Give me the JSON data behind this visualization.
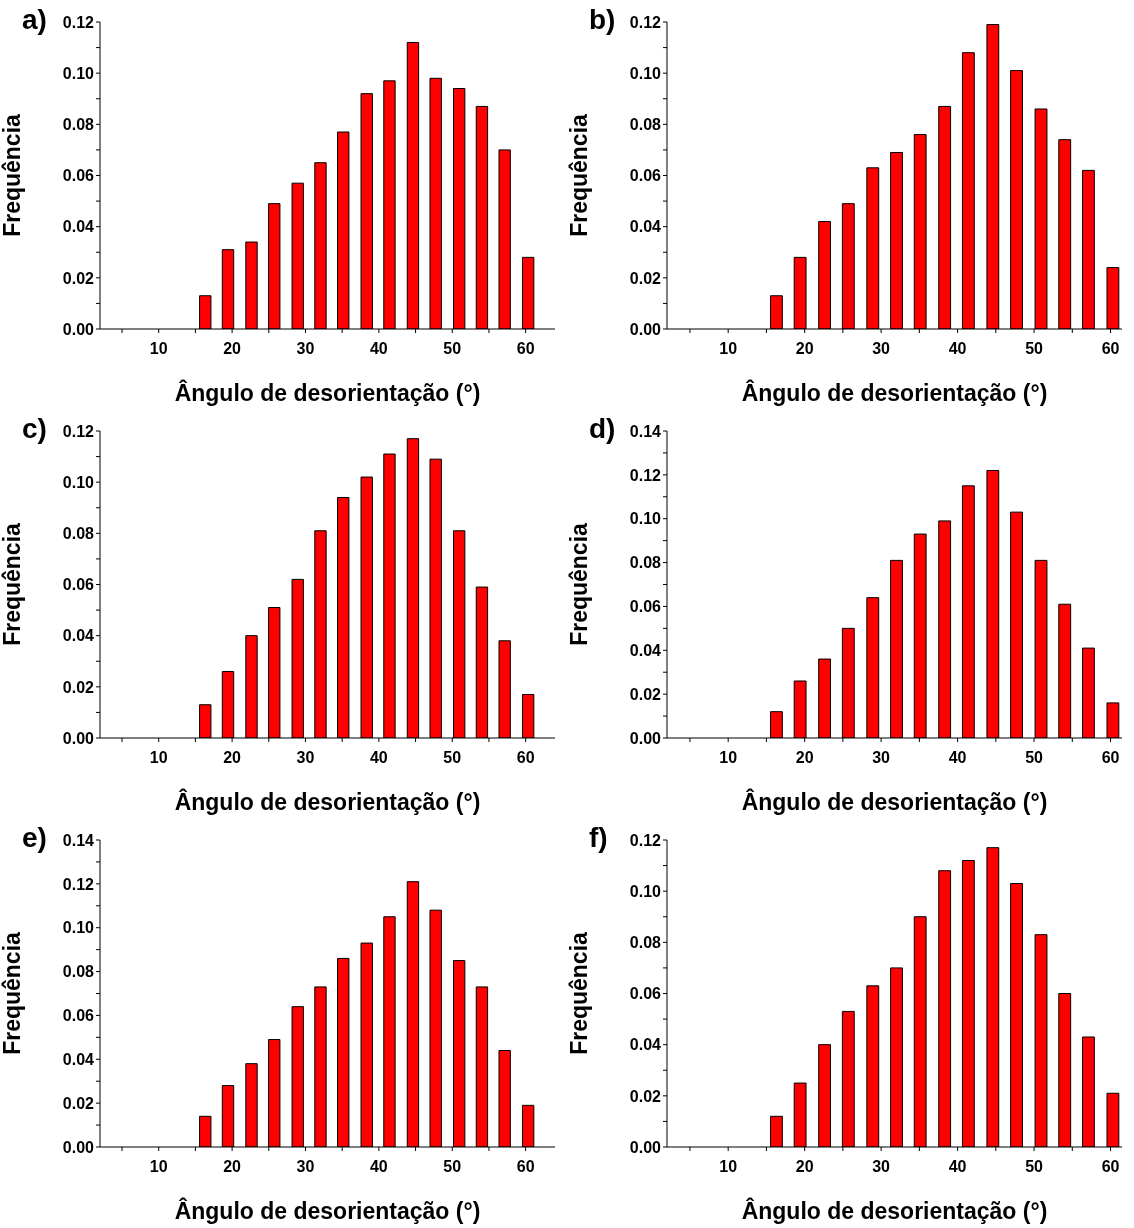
{
  "chart_data": [
    {
      "type": "bar",
      "title": "a)",
      "xlabel": "Ângulo de desorientação (°)",
      "ylabel": "Frequência",
      "x": [
        16.3,
        19.4,
        22.6,
        25.7,
        28.9,
        32.0,
        35.1,
        38.3,
        41.4,
        44.6,
        47.7,
        50.9,
        54.0,
        57.1,
        60.3
      ],
      "values": [
        0.013,
        0.031,
        0.034,
        0.049,
        0.057,
        0.065,
        0.077,
        0.092,
        0.097,
        0.112,
        0.098,
        0.094,
        0.087,
        0.07,
        0.028
      ],
      "color": "#ff0000",
      "xlim": [
        2,
        64
      ],
      "xticks": [
        {
          "value": 5,
          "label": null
        },
        10,
        {
          "value": 15,
          "label": null
        },
        20,
        {
          "value": 25,
          "label": null
        },
        30,
        {
          "value": 35,
          "label": null
        },
        40,
        {
          "value": 45,
          "label": null
        },
        50,
        {
          "value": 55,
          "label": null
        },
        60
      ],
      "ylim": [
        0,
        0.12
      ],
      "yticks": [
        {
          "value": 0,
          "label": "0.00"
        },
        {
          "value": 0.01,
          "label": null
        },
        {
          "value": 0.02,
          "label": "0.02"
        },
        {
          "value": 0.03,
          "label": null
        },
        {
          "value": 0.04,
          "label": "0.04"
        },
        {
          "value": 0.05,
          "label": null
        },
        {
          "value": 0.06,
          "label": "0.06"
        },
        {
          "value": 0.07,
          "label": null
        },
        {
          "value": 0.08,
          "label": "0.08"
        },
        {
          "value": 0.09,
          "label": null
        },
        {
          "value": 0.1,
          "label": "0.10"
        },
        {
          "value": 0.11,
          "label": null
        },
        {
          "value": 0.12,
          "label": "0.12"
        }
      ]
    },
    {
      "type": "bar",
      "title": "b)",
      "xlabel": "Ângulo de desorientação (°)",
      "ylabel": "Frequência",
      "x": [
        16.3,
        19.4,
        22.6,
        25.7,
        28.9,
        32.0,
        35.1,
        38.3,
        41.4,
        44.6,
        47.7,
        50.9,
        54.0,
        57.1,
        60.3
      ],
      "values": [
        0.013,
        0.028,
        0.042,
        0.049,
        0.063,
        0.069,
        0.076,
        0.087,
        0.108,
        0.119,
        0.101,
        0.086,
        0.074,
        0.062,
        0.024
      ],
      "color": "#ff0000",
      "xlim": [
        2,
        61.5
      ],
      "xticks": [
        {
          "value": 5,
          "label": null
        },
        10,
        {
          "value": 15,
          "label": null
        },
        20,
        {
          "value": 25,
          "label": null
        },
        30,
        {
          "value": 35,
          "label": null
        },
        40,
        {
          "value": 45,
          "label": null
        },
        50,
        {
          "value": 55,
          "label": null
        },
        60
      ],
      "ylim": [
        0,
        0.12
      ],
      "yticks": [
        {
          "value": 0,
          "label": "0.00"
        },
        {
          "value": 0.01,
          "label": null
        },
        {
          "value": 0.02,
          "label": "0.02"
        },
        {
          "value": 0.03,
          "label": null
        },
        {
          "value": 0.04,
          "label": "0.04"
        },
        {
          "value": 0.05,
          "label": null
        },
        {
          "value": 0.06,
          "label": "0.06"
        },
        {
          "value": 0.07,
          "label": null
        },
        {
          "value": 0.08,
          "label": "0.08"
        },
        {
          "value": 0.09,
          "label": null
        },
        {
          "value": 0.1,
          "label": "0.10"
        },
        {
          "value": 0.11,
          "label": null
        },
        {
          "value": 0.12,
          "label": "0.12"
        }
      ]
    },
    {
      "type": "bar",
      "title": "c)",
      "xlabel": "Ângulo de desorientação (°)",
      "ylabel": "Frequência",
      "x": [
        16.3,
        19.4,
        22.6,
        25.7,
        28.9,
        32.0,
        35.1,
        38.3,
        41.4,
        44.6,
        47.7,
        50.9,
        54.0,
        57.1,
        60.3
      ],
      "values": [
        0.013,
        0.026,
        0.04,
        0.051,
        0.062,
        0.081,
        0.094,
        0.102,
        0.111,
        0.117,
        0.109,
        0.081,
        0.059,
        0.038,
        0.017
      ],
      "color": "#ff0000",
      "xlim": [
        2,
        64
      ],
      "xticks": [
        {
          "value": 5,
          "label": null
        },
        10,
        {
          "value": 15,
          "label": null
        },
        20,
        {
          "value": 25,
          "label": null
        },
        30,
        {
          "value": 35,
          "label": null
        },
        40,
        {
          "value": 45,
          "label": null
        },
        50,
        {
          "value": 55,
          "label": null
        },
        60
      ],
      "ylim": [
        0,
        0.12
      ],
      "yticks": [
        {
          "value": 0,
          "label": "0.00"
        },
        {
          "value": 0.01,
          "label": null
        },
        {
          "value": 0.02,
          "label": "0.02"
        },
        {
          "value": 0.03,
          "label": null
        },
        {
          "value": 0.04,
          "label": "0.04"
        },
        {
          "value": 0.05,
          "label": null
        },
        {
          "value": 0.06,
          "label": "0.06"
        },
        {
          "value": 0.07,
          "label": null
        },
        {
          "value": 0.08,
          "label": "0.08"
        },
        {
          "value": 0.09,
          "label": null
        },
        {
          "value": 0.1,
          "label": "0.10"
        },
        {
          "value": 0.11,
          "label": null
        },
        {
          "value": 0.12,
          "label": "0.12"
        }
      ]
    },
    {
      "type": "bar",
      "title": "d)",
      "xlabel": "Ângulo de desorientação (°)",
      "ylabel": "Frequência",
      "x": [
        16.3,
        19.4,
        22.6,
        25.7,
        28.9,
        32.0,
        35.1,
        38.3,
        41.4,
        44.6,
        47.7,
        50.9,
        54.0,
        57.1,
        60.3
      ],
      "values": [
        0.012,
        0.026,
        0.036,
        0.05,
        0.064,
        0.081,
        0.093,
        0.099,
        0.115,
        0.122,
        0.103,
        0.081,
        0.061,
        0.041,
        0.016
      ],
      "color": "#ff0000",
      "xlim": [
        2,
        61.5
      ],
      "xticks": [
        {
          "value": 5,
          "label": null
        },
        10,
        {
          "value": 15,
          "label": null
        },
        20,
        {
          "value": 25,
          "label": null
        },
        30,
        {
          "value": 35,
          "label": null
        },
        40,
        {
          "value": 45,
          "label": null
        },
        50,
        {
          "value": 55,
          "label": null
        },
        60
      ],
      "ylim": [
        0,
        0.14
      ],
      "yticks": [
        {
          "value": 0,
          "label": "0.00"
        },
        {
          "value": 0.01,
          "label": null
        },
        {
          "value": 0.02,
          "label": "0.02"
        },
        {
          "value": 0.03,
          "label": null
        },
        {
          "value": 0.04,
          "label": "0.04"
        },
        {
          "value": 0.05,
          "label": null
        },
        {
          "value": 0.06,
          "label": "0.06"
        },
        {
          "value": 0.07,
          "label": null
        },
        {
          "value": 0.08,
          "label": "0.08"
        },
        {
          "value": 0.09,
          "label": null
        },
        {
          "value": 0.1,
          "label": "0.10"
        },
        {
          "value": 0.11,
          "label": null
        },
        {
          "value": 0.12,
          "label": "0.12"
        },
        {
          "value": 0.13,
          "label": null
        },
        {
          "value": 0.14,
          "label": "0.14"
        }
      ]
    },
    {
      "type": "bar",
      "title": "e)",
      "xlabel": "Ângulo de desorientação (°)",
      "ylabel": "Frequência",
      "x": [
        16.3,
        19.4,
        22.6,
        25.7,
        28.9,
        32.0,
        35.1,
        38.3,
        41.4,
        44.6,
        47.7,
        50.9,
        54.0,
        57.1,
        60.3
      ],
      "values": [
        0.014,
        0.028,
        0.038,
        0.049,
        0.064,
        0.073,
        0.086,
        0.093,
        0.105,
        0.121,
        0.108,
        0.085,
        0.073,
        0.044,
        0.019
      ],
      "color": "#ff0000",
      "xlim": [
        2,
        64
      ],
      "xticks": [
        {
          "value": 5,
          "label": null
        },
        10,
        {
          "value": 15,
          "label": null
        },
        20,
        {
          "value": 25,
          "label": null
        },
        30,
        {
          "value": 35,
          "label": null
        },
        40,
        {
          "value": 45,
          "label": null
        },
        50,
        {
          "value": 55,
          "label": null
        },
        60
      ],
      "ylim": [
        0,
        0.14
      ],
      "yticks": [
        {
          "value": 0,
          "label": "0.00"
        },
        {
          "value": 0.01,
          "label": null
        },
        {
          "value": 0.02,
          "label": "0.02"
        },
        {
          "value": 0.03,
          "label": null
        },
        {
          "value": 0.04,
          "label": "0.04"
        },
        {
          "value": 0.05,
          "label": null
        },
        {
          "value": 0.06,
          "label": "0.06"
        },
        {
          "value": 0.07,
          "label": null
        },
        {
          "value": 0.08,
          "label": "0.08"
        },
        {
          "value": 0.09,
          "label": null
        },
        {
          "value": 0.1,
          "label": "0.10"
        },
        {
          "value": 0.11,
          "label": null
        },
        {
          "value": 0.12,
          "label": "0.12"
        },
        {
          "value": 0.13,
          "label": null
        },
        {
          "value": 0.14,
          "label": "0.14"
        }
      ]
    },
    {
      "type": "bar",
      "title": "f)",
      "xlabel": "Ângulo de desorientação (°)",
      "ylabel": "Frequência",
      "x": [
        16.3,
        19.4,
        22.6,
        25.7,
        28.9,
        32.0,
        35.1,
        38.3,
        41.4,
        44.6,
        47.7,
        50.9,
        54.0,
        57.1,
        60.3
      ],
      "values": [
        0.012,
        0.025,
        0.04,
        0.053,
        0.063,
        0.07,
        0.09,
        0.108,
        0.112,
        0.117,
        0.103,
        0.083,
        0.06,
        0.043,
        0.021
      ],
      "color": "#ff0000",
      "xlim": [
        2,
        61.5
      ],
      "xticks": [
        {
          "value": 5,
          "label": null
        },
        10,
        {
          "value": 15,
          "label": null
        },
        20,
        {
          "value": 25,
          "label": null
        },
        30,
        {
          "value": 35,
          "label": null
        },
        40,
        {
          "value": 45,
          "label": null
        },
        50,
        {
          "value": 55,
          "label": null
        },
        60
      ],
      "ylim": [
        0,
        0.12
      ],
      "yticks": [
        {
          "value": 0,
          "label": "0.00"
        },
        {
          "value": 0.01,
          "label": null
        },
        {
          "value": 0.02,
          "label": "0.02"
        },
        {
          "value": 0.03,
          "label": null
        },
        {
          "value": 0.04,
          "label": "0.04"
        },
        {
          "value": 0.05,
          "label": null
        },
        {
          "value": 0.06,
          "label": "0.06"
        },
        {
          "value": 0.07,
          "label": null
        },
        {
          "value": 0.08,
          "label": "0.08"
        },
        {
          "value": 0.09,
          "label": null
        },
        {
          "value": 0.1,
          "label": "0.10"
        },
        {
          "value": 0.11,
          "label": null
        },
        {
          "value": 0.12,
          "label": "0.12"
        }
      ]
    }
  ]
}
